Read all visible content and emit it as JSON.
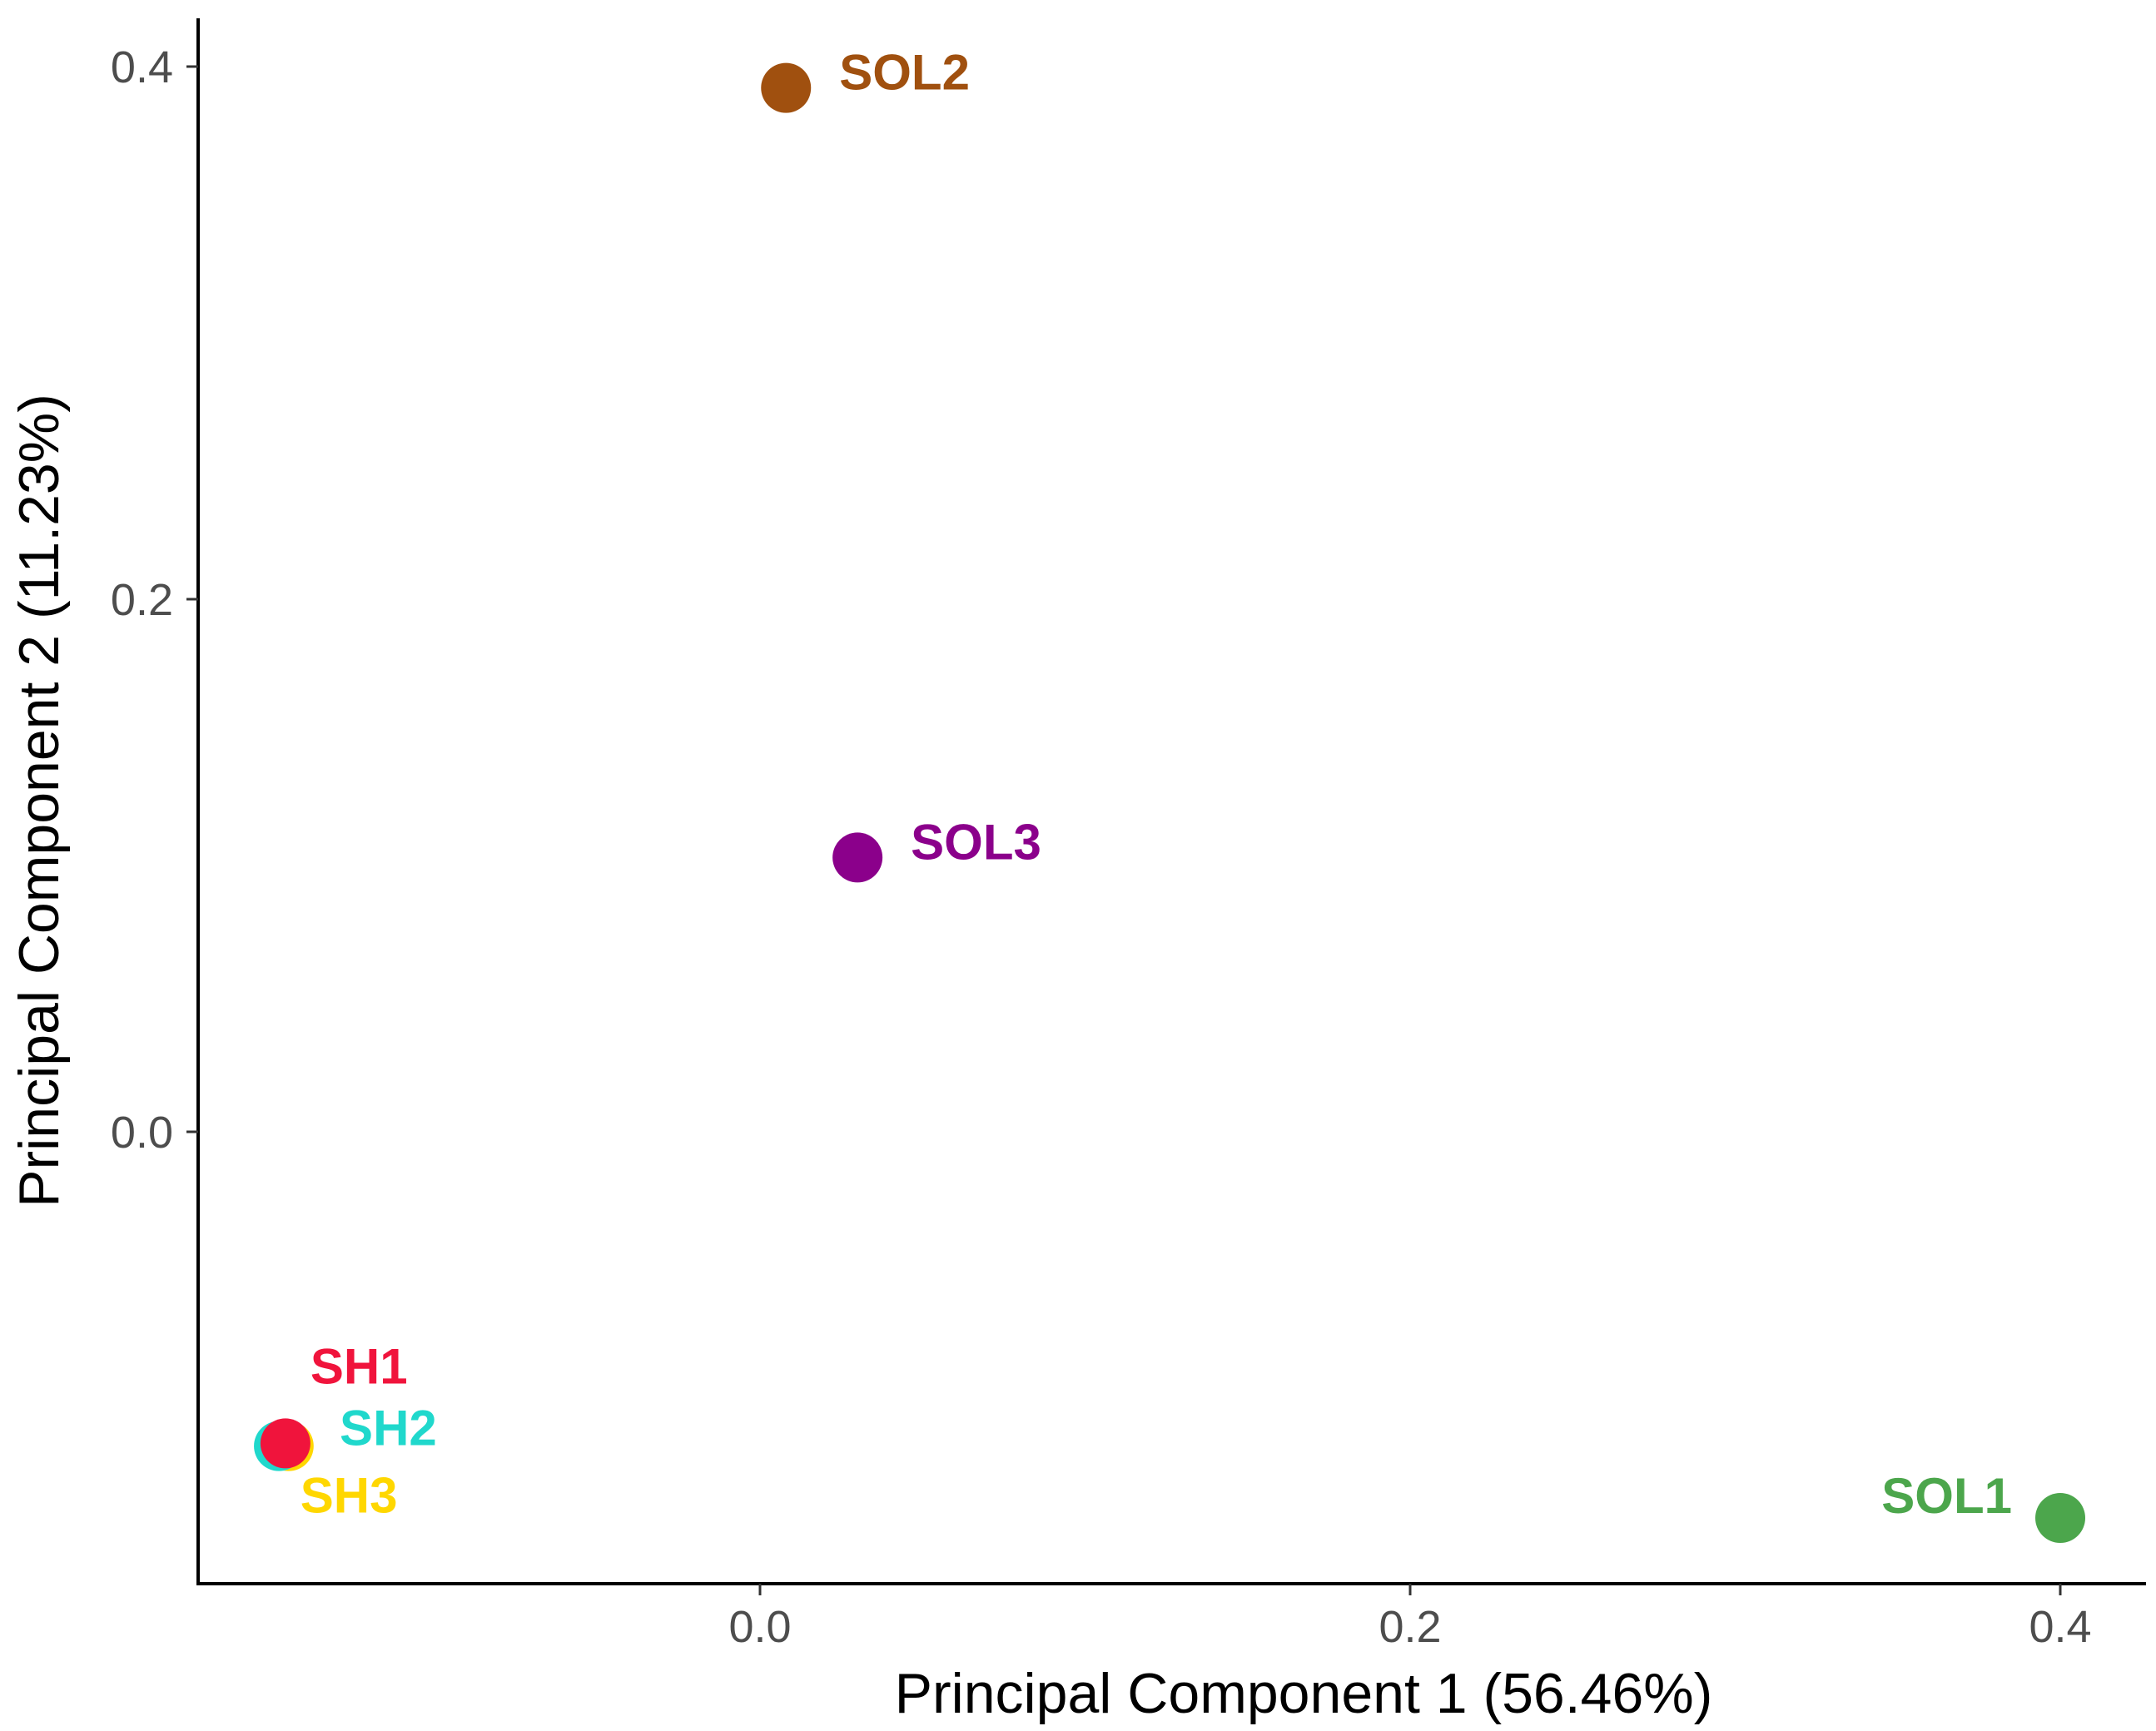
{
  "chart_data": {
    "type": "scatter",
    "xlabel": "Principal Component 1 (56.46%)",
    "ylabel": "Principal Component 2 (11.23%)",
    "xlim": [
      -0.176,
      0.43
    ],
    "ylim": [
      -0.17,
      0.42
    ],
    "xticks": [
      {
        "value": 0.0,
        "label": "0.0"
      },
      {
        "value": 0.2,
        "label": "0.2"
      },
      {
        "value": 0.4,
        "label": "0.4"
      }
    ],
    "yticks": [
      {
        "value": 0.0,
        "label": "0.0"
      },
      {
        "value": 0.2,
        "label": "0.2"
      },
      {
        "value": 0.4,
        "label": "0.4"
      }
    ],
    "grid": false,
    "legend": "none",
    "points": [
      {
        "label": "SOL2",
        "x": 0.008,
        "y": 0.392,
        "color": "#A0500F",
        "label_pos": "right"
      },
      {
        "label": "SOL3",
        "x": 0.03,
        "y": 0.103,
        "color": "#8B008B",
        "label_pos": "right"
      },
      {
        "label": "SOL1",
        "x": 0.4,
        "y": -0.145,
        "color": "#4CA64C",
        "label_pos": "left"
      },
      {
        "label": "SH3",
        "x": -0.145,
        "y": -0.118,
        "color": "#FFD700",
        "label_pos": "below"
      },
      {
        "label": "SH2",
        "x": -0.148,
        "y": -0.118,
        "color": "#20D8CC",
        "label_pos": "upper-right"
      },
      {
        "label": "SH1",
        "x": -0.146,
        "y": -0.117,
        "color": "#F0143C",
        "label_pos": "above"
      }
    ]
  }
}
